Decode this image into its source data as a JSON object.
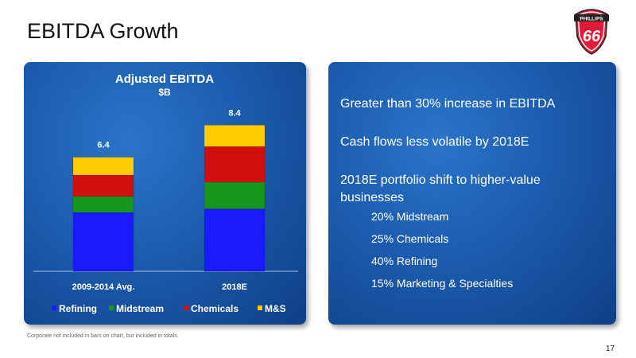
{
  "slide": {
    "title": "EBITDA Growth",
    "page_number": "17",
    "footnote": "Corporate not included in bars on chart, but included in totals.",
    "logo_text": "PHILLIPS",
    "logo_number": "66"
  },
  "bullets": {
    "b1": "Greater than 30% increase in EBITDA",
    "b2": "Cash flows less volatile by 2018E",
    "b3": "2018E portfolio shift to higher-value businesses",
    "sub": [
      "20% Midstream",
      "25% Chemicals",
      "40% Refining",
      "15% Marketing & Specialties"
    ]
  },
  "colors": {
    "refining": "#1a1aff",
    "midstream": "#16961a",
    "chemicals": "#d20f0f",
    "ms": "#ffcc00",
    "panel": "#1c5cae",
    "logo_red": "#e31937"
  },
  "chart_data": {
    "type": "bar",
    "stacked": true,
    "title": "Adjusted EBITDA",
    "subtitle": "$B",
    "categories": [
      "2009-2014 Avg.",
      "2018E"
    ],
    "totals": [
      6.4,
      8.4
    ],
    "series": [
      {
        "name": "Refining",
        "color": "#1a1aff",
        "values": [
          3.3,
          3.5
        ]
      },
      {
        "name": "Midstream",
        "color": "#16961a",
        "values": [
          0.9,
          1.5
        ]
      },
      {
        "name": "Chemicals",
        "color": "#d20f0f",
        "values": [
          1.2,
          2.0
        ]
      },
      {
        "name": "M&S",
        "color": "#ffcc00",
        "values": [
          1.0,
          1.2
        ]
      }
    ],
    "ylim": [
      0,
      10
    ],
    "legend_position": "bottom",
    "grid": false
  }
}
